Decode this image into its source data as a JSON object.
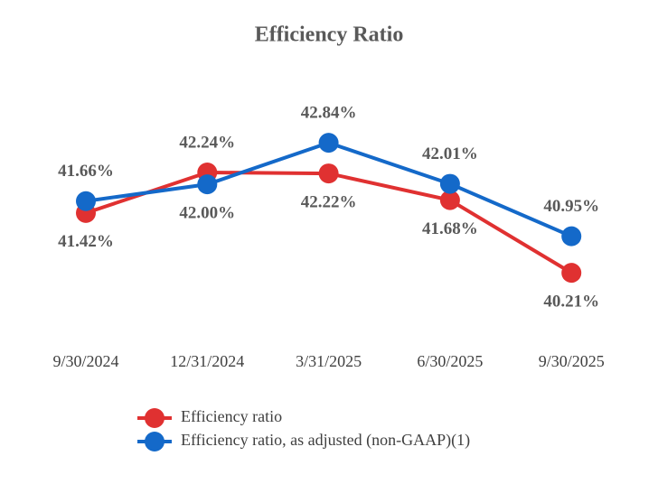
{
  "chart_data": {
    "type": "line",
    "title": "Efficiency Ratio",
    "categories": [
      "9/30/2024",
      "12/31/2024",
      "3/31/2025",
      "6/30/2025",
      "9/30/2025"
    ],
    "series": [
      {
        "name": "Efficiency ratio",
        "color": "#e03131",
        "values": [
          41.42,
          42.24,
          42.22,
          41.68,
          40.21
        ],
        "value_labels": [
          "41.42%",
          "42.24%",
          "42.22%",
          "41.68%",
          "40.21%"
        ]
      },
      {
        "name": "Efficiency ratio, as adjusted (non-GAAP)(1)",
        "color": "#1469c9",
        "values": [
          41.66,
          42.0,
          42.84,
          42.01,
          40.95
        ],
        "value_labels": [
          "41.66%",
          "42.00%",
          "42.84%",
          "42.01%",
          "40.95%"
        ]
      }
    ],
    "ylim": [
      39.5,
      43.5
    ],
    "grid": false,
    "legend": "bottom"
  }
}
